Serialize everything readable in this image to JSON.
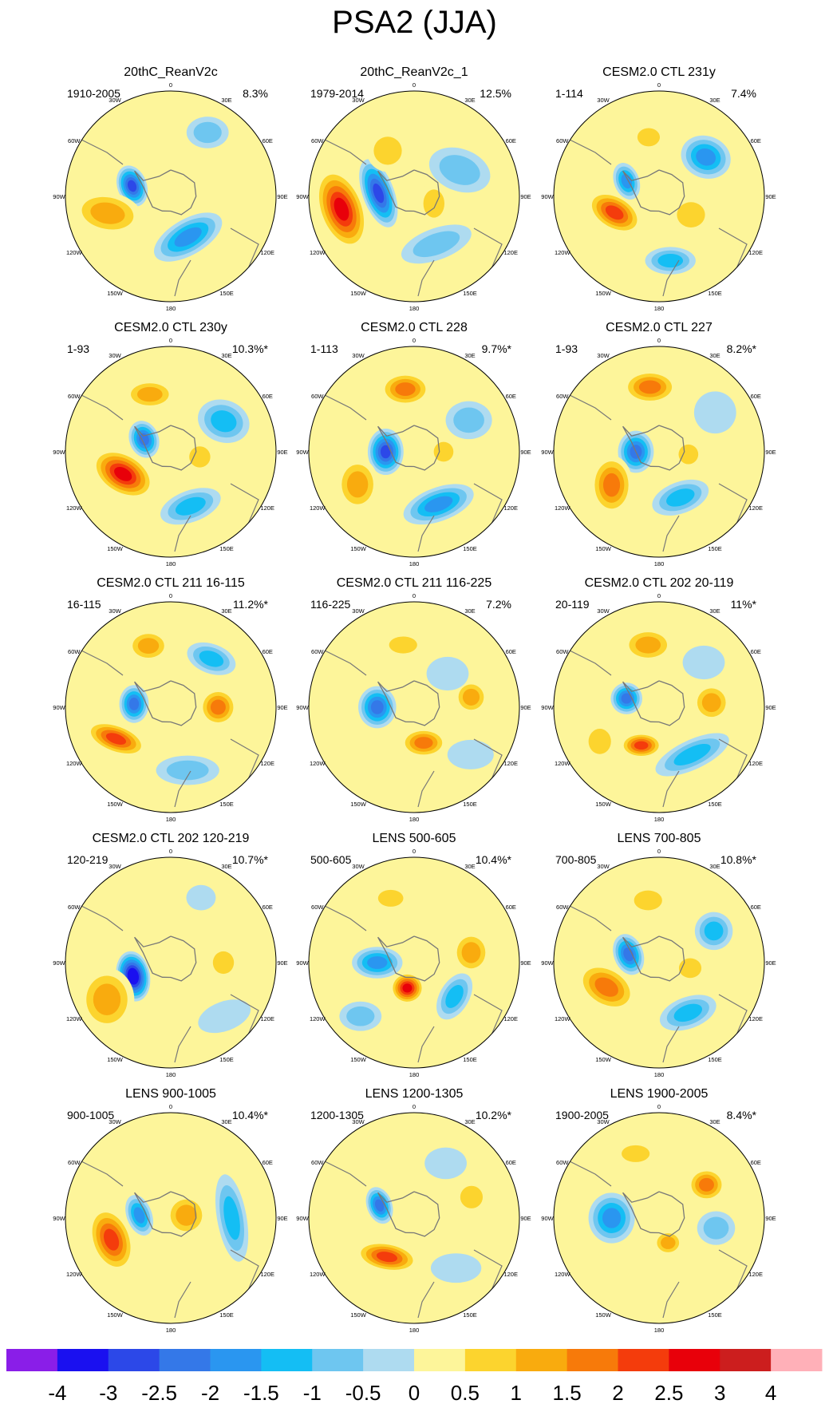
{
  "title": "PSA2 (JJA)",
  "colors": {
    "background": "#ffffff",
    "coast": "#777777",
    "circle_border": "#000000"
  },
  "chart_data": {
    "type": "polar-contour-map-grid",
    "projection": "south polar stereographic",
    "units": "normalized anomaly",
    "longitude_labels": [
      "0",
      "30E",
      "60E",
      "90E",
      "120E",
      "150E",
      "180",
      "150W",
      "120W",
      "90W",
      "60W",
      "30W"
    ],
    "colorbar": {
      "ticks": [
        "-4",
        "-3",
        "-2.5",
        "-2",
        "-1.5",
        "-1",
        "-0.5",
        "0",
        "0.5",
        "1",
        "1.5",
        "2",
        "2.5",
        "3",
        "4"
      ],
      "colors": [
        "#8a1ee8",
        "#1a10f0",
        "#2c48e8",
        "#3478e8",
        "#2a96f0",
        "#14bef4",
        "#6ec6f0",
        "#aedbf0",
        "#fdf59a",
        "#fcd42e",
        "#f9ab0e",
        "#f77a0a",
        "#f43c0c",
        "#e8000a",
        "#cc1e1e",
        "#ffb0b8"
      ]
    },
    "panels": [
      {
        "title": "20thC_ReanV2c",
        "period": "1910-2005",
        "variance": "8.3%",
        "anomalies": [
          {
            "lon_deg": -75,
            "dist": 0.38,
            "rx": 0.14,
            "ry": 0.2,
            "rot": -20,
            "value": -3
          },
          {
            "lon_deg": 157,
            "dist": 0.42,
            "rx": 0.36,
            "ry": 0.17,
            "rot": -30,
            "value": -2
          },
          {
            "lon_deg": -105,
            "dist": 0.62,
            "rx": 0.33,
            "ry": 0.2,
            "rot": 10,
            "value": 1.5
          },
          {
            "lon_deg": 30,
            "dist": 0.7,
            "rx": 0.2,
            "ry": 0.15,
            "rot": 0,
            "value": -1
          },
          {
            "lon_deg": -30,
            "dist": 0.78,
            "rx": 0.2,
            "ry": 0.1,
            "rot": 0,
            "value": 0.5
          }
        ]
      },
      {
        "title": "20thC_ReanV2c_1",
        "period": "1979-2014",
        "variance": "12.5%",
        "anomalies": [
          {
            "lon_deg": -100,
            "dist": 0.7,
            "rx": 0.22,
            "ry": 0.4,
            "rot": -20,
            "value": 3
          },
          {
            "lon_deg": -85,
            "dist": 0.34,
            "rx": 0.15,
            "ry": 0.34,
            "rot": -20,
            "value": -3
          },
          {
            "lon_deg": 60,
            "dist": 0.5,
            "rx": 0.3,
            "ry": 0.2,
            "rot": 20,
            "value": -1
          },
          {
            "lon_deg": 155,
            "dist": 0.5,
            "rx": 0.35,
            "ry": 0.15,
            "rot": -20,
            "value": -1
          },
          {
            "lon_deg": 110,
            "dist": 0.2,
            "rx": 0.15,
            "ry": 0.2,
            "rot": 0,
            "value": 1
          },
          {
            "lon_deg": -30,
            "dist": 0.5,
            "rx": 0.2,
            "ry": 0.2,
            "rot": 0,
            "value": 1
          }
        ]
      },
      {
        "title": "CESM2.0 CTL 231y",
        "period": "1-114",
        "variance": "7.4%",
        "anomalies": [
          {
            "lon_deg": -110,
            "dist": 0.45,
            "rx": 0.28,
            "ry": 0.17,
            "rot": 30,
            "value": 2.5
          },
          {
            "lon_deg": -65,
            "dist": 0.34,
            "rx": 0.12,
            "ry": 0.18,
            "rot": -20,
            "value": -2
          },
          {
            "lon_deg": 50,
            "dist": 0.58,
            "rx": 0.24,
            "ry": 0.2,
            "rot": 20,
            "value": -2
          },
          {
            "lon_deg": 170,
            "dist": 0.62,
            "rx": 0.24,
            "ry": 0.13,
            "rot": 0,
            "value": -1.5
          },
          {
            "lon_deg": -10,
            "dist": 0.57,
            "rx": 0.16,
            "ry": 0.13,
            "rot": 0,
            "value": 1
          },
          {
            "lon_deg": 120,
            "dist": 0.35,
            "rx": 0.2,
            "ry": 0.18,
            "rot": 0,
            "value": 1
          }
        ]
      },
      {
        "title": "CESM2.0 CTL 230y",
        "period": "1-93",
        "variance": "10.3%*",
        "anomalies": [
          {
            "lon_deg": -115,
            "dist": 0.5,
            "rx": 0.32,
            "ry": 0.2,
            "rot": 30,
            "value": 3
          },
          {
            "lon_deg": -65,
            "dist": 0.28,
            "rx": 0.14,
            "ry": 0.18,
            "rot": -20,
            "value": -2.5
          },
          {
            "lon_deg": 60,
            "dist": 0.58,
            "rx": 0.25,
            "ry": 0.2,
            "rot": 20,
            "value": -1.5
          },
          {
            "lon_deg": 160,
            "dist": 0.55,
            "rx": 0.3,
            "ry": 0.15,
            "rot": -20,
            "value": -1.5
          },
          {
            "lon_deg": -20,
            "dist": 0.58,
            "rx": 0.24,
            "ry": 0.14,
            "rot": 0,
            "value": 1.5
          },
          {
            "lon_deg": 100,
            "dist": 0.28,
            "rx": 0.15,
            "ry": 0.15,
            "rot": 0,
            "value": 1
          }
        ]
      },
      {
        "title": "CESM2.0 CTL 228",
        "period": "1-113",
        "variance": "9.7%*",
        "anomalies": [
          {
            "lon_deg": -90,
            "dist": 0.27,
            "rx": 0.17,
            "ry": 0.22,
            "rot": 0,
            "value": -3
          },
          {
            "lon_deg": -8,
            "dist": 0.6,
            "rx": 0.24,
            "ry": 0.16,
            "rot": 0,
            "value": 2
          },
          {
            "lon_deg": -120,
            "dist": 0.62,
            "rx": 0.2,
            "ry": 0.25,
            "rot": 0,
            "value": 1.5
          },
          {
            "lon_deg": 155,
            "dist": 0.55,
            "rx": 0.35,
            "ry": 0.16,
            "rot": -20,
            "value": -2
          },
          {
            "lon_deg": 60,
            "dist": 0.6,
            "rx": 0.22,
            "ry": 0.18,
            "rot": 0,
            "value": -1
          },
          {
            "lon_deg": 90,
            "dist": 0.28,
            "rx": 0.14,
            "ry": 0.14,
            "rot": 0,
            "value": 1
          }
        ]
      },
      {
        "title": "CESM2.0 CTL 227",
        "period": "1-93",
        "variance": "8.2%*",
        "anomalies": [
          {
            "lon_deg": -90,
            "dist": 0.22,
            "rx": 0.17,
            "ry": 0.2,
            "rot": 0,
            "value": -2.5
          },
          {
            "lon_deg": -8,
            "dist": 0.62,
            "rx": 0.26,
            "ry": 0.16,
            "rot": 0,
            "value": 2
          },
          {
            "lon_deg": -125,
            "dist": 0.55,
            "rx": 0.2,
            "ry": 0.28,
            "rot": 0,
            "value": 2
          },
          {
            "lon_deg": 155,
            "dist": 0.48,
            "rx": 0.28,
            "ry": 0.15,
            "rot": -20,
            "value": -1.5
          },
          {
            "lon_deg": 55,
            "dist": 0.65,
            "rx": 0.2,
            "ry": 0.2,
            "rot": 0,
            "value": -0.5
          },
          {
            "lon_deg": 95,
            "dist": 0.28,
            "rx": 0.14,
            "ry": 0.14,
            "rot": 0,
            "value": 1
          }
        ]
      },
      {
        "title": "CESM2.0 CTL 211 16-115",
        "period": "16-115",
        "variance": "11.2%*",
        "anomalies": [
          {
            "lon_deg": -85,
            "dist": 0.35,
            "rx": 0.14,
            "ry": 0.18,
            "rot": 0,
            "value": -2.5
          },
          {
            "lon_deg": -120,
            "dist": 0.6,
            "rx": 0.3,
            "ry": 0.14,
            "rot": 20,
            "value": 2.5
          },
          {
            "lon_deg": 90,
            "dist": 0.45,
            "rx": 0.18,
            "ry": 0.18,
            "rot": 0,
            "value": 2
          },
          {
            "lon_deg": 40,
            "dist": 0.6,
            "rx": 0.24,
            "ry": 0.14,
            "rot": 20,
            "value": -1.5
          },
          {
            "lon_deg": -20,
            "dist": 0.62,
            "rx": 0.2,
            "ry": 0.15,
            "rot": 0,
            "value": 1.5
          },
          {
            "lon_deg": 165,
            "dist": 0.62,
            "rx": 0.3,
            "ry": 0.14,
            "rot": 0,
            "value": -1
          }
        ]
      },
      {
        "title": "CESM2.0 CTL 211 116-225",
        "period": "116-225",
        "variance": "7.2%",
        "anomalies": [
          {
            "lon_deg": -90,
            "dist": 0.35,
            "rx": 0.18,
            "ry": 0.2,
            "rot": 0,
            "value": -2.5
          },
          {
            "lon_deg": 165,
            "dist": 0.35,
            "rx": 0.22,
            "ry": 0.14,
            "rot": 0,
            "value": 2
          },
          {
            "lon_deg": 80,
            "dist": 0.55,
            "rx": 0.16,
            "ry": 0.16,
            "rot": 0,
            "value": 1.5
          },
          {
            "lon_deg": -10,
            "dist": 0.6,
            "rx": 0.2,
            "ry": 0.12,
            "rot": 0,
            "value": 1
          },
          {
            "lon_deg": 45,
            "dist": 0.45,
            "rx": 0.2,
            "ry": 0.16,
            "rot": 0,
            "value": -0.5
          },
          {
            "lon_deg": 130,
            "dist": 0.7,
            "rx": 0.22,
            "ry": 0.14,
            "rot": 0,
            "value": -0.5
          }
        ]
      },
      {
        "title": "CESM2.0 CTL 202 20-119",
        "period": "20-119",
        "variance": "11%*",
        "anomalies": [
          {
            "lon_deg": -75,
            "dist": 0.32,
            "rx": 0.15,
            "ry": 0.15,
            "rot": 0,
            "value": -2.5
          },
          {
            "lon_deg": -155,
            "dist": 0.4,
            "rx": 0.2,
            "ry": 0.12,
            "rot": 0,
            "value": 2.5
          },
          {
            "lon_deg": 145,
            "dist": 0.55,
            "rx": 0.38,
            "ry": 0.14,
            "rot": -25,
            "value": -1.5
          },
          {
            "lon_deg": -10,
            "dist": 0.6,
            "rx": 0.24,
            "ry": 0.16,
            "rot": 0,
            "value": 1.5
          },
          {
            "lon_deg": 85,
            "dist": 0.5,
            "rx": 0.18,
            "ry": 0.18,
            "rot": 0,
            "value": 1.5
          },
          {
            "lon_deg": 45,
            "dist": 0.6,
            "rx": 0.2,
            "ry": 0.16,
            "rot": 0,
            "value": -0.5
          },
          {
            "lon_deg": -120,
            "dist": 0.65,
            "rx": 0.16,
            "ry": 0.18,
            "rot": 0,
            "value": 1
          }
        ]
      },
      {
        "title": "CESM2.0 CTL 202 120-219",
        "period": "120-219",
        "variance": "10.7%*",
        "anomalies": [
          {
            "lon_deg": -110,
            "dist": 0.38,
            "rx": 0.16,
            "ry": 0.24,
            "rot": -10,
            "value": -4
          },
          {
            "lon_deg": -120,
            "dist": 0.7,
            "rx": 0.26,
            "ry": 0.3,
            "rot": 0,
            "value": 1.5
          },
          {
            "lon_deg": 25,
            "dist": 0.68,
            "rx": 0.14,
            "ry": 0.12,
            "rot": 0,
            "value": -0.5
          },
          {
            "lon_deg": 90,
            "dist": 0.5,
            "rx": 0.15,
            "ry": 0.16,
            "rot": 0,
            "value": 1
          },
          {
            "lon_deg": 135,
            "dist": 0.72,
            "rx": 0.26,
            "ry": 0.14,
            "rot": -20,
            "value": -0.5
          },
          {
            "lon_deg": -30,
            "dist": 0.65,
            "rx": 0.16,
            "ry": 0.12,
            "rot": 0,
            "value": 0.5
          }
        ]
      },
      {
        "title": "LENS 500-605",
        "period": "500-605",
        "variance": "10.4%*",
        "anomalies": [
          {
            "lon_deg": -165,
            "dist": 0.25,
            "rx": 0.16,
            "ry": 0.15,
            "rot": 0,
            "value": 3
          },
          {
            "lon_deg": -90,
            "dist": 0.35,
            "rx": 0.24,
            "ry": 0.15,
            "rot": 0,
            "value": -2
          },
          {
            "lon_deg": 130,
            "dist": 0.5,
            "rx": 0.14,
            "ry": 0.24,
            "rot": 30,
            "value": -1.5
          },
          {
            "lon_deg": 80,
            "dist": 0.55,
            "rx": 0.18,
            "ry": 0.2,
            "rot": 0,
            "value": 1.5
          },
          {
            "lon_deg": -20,
            "dist": 0.65,
            "rx": 0.18,
            "ry": 0.12,
            "rot": 0,
            "value": 1
          },
          {
            "lon_deg": -135,
            "dist": 0.72,
            "rx": 0.2,
            "ry": 0.14,
            "rot": 0,
            "value": -1
          }
        ]
      },
      {
        "title": "LENS 700-805",
        "period": "700-805",
        "variance": "10.8%*",
        "anomalies": [
          {
            "lon_deg": -75,
            "dist": 0.3,
            "rx": 0.14,
            "ry": 0.2,
            "rot": -20,
            "value": -2.5
          },
          {
            "lon_deg": -115,
            "dist": 0.55,
            "rx": 0.3,
            "ry": 0.2,
            "rot": 30,
            "value": 2
          },
          {
            "lon_deg": 60,
            "dist": 0.6,
            "rx": 0.18,
            "ry": 0.18,
            "rot": 0,
            "value": -1.5
          },
          {
            "lon_deg": 150,
            "dist": 0.55,
            "rx": 0.28,
            "ry": 0.15,
            "rot": -20,
            "value": -1.5
          },
          {
            "lon_deg": -10,
            "dist": 0.6,
            "rx": 0.2,
            "ry": 0.14,
            "rot": 0,
            "value": 1
          },
          {
            "lon_deg": 100,
            "dist": 0.3,
            "rx": 0.16,
            "ry": 0.14,
            "rot": 0,
            "value": 1
          }
        ]
      },
      {
        "title": "LENS 900-1005",
        "period": "900-1005",
        "variance": "10.4%*",
        "anomalies": [
          {
            "lon_deg": -110,
            "dist": 0.6,
            "rx": 0.2,
            "ry": 0.32,
            "rot": -20,
            "value": 2.5
          },
          {
            "lon_deg": -85,
            "dist": 0.3,
            "rx": 0.12,
            "ry": 0.2,
            "rot": -20,
            "value": -2
          },
          {
            "lon_deg": 90,
            "dist": 0.58,
            "rx": 0.14,
            "ry": 0.42,
            "rot": -10,
            "value": -1.5
          },
          {
            "lon_deg": 80,
            "dist": 0.15,
            "rx": 0.2,
            "ry": 0.2,
            "rot": 0,
            "value": 1.5
          },
          {
            "lon_deg": -20,
            "dist": 0.6,
            "rx": 0.2,
            "ry": 0.15,
            "rot": 0,
            "value": 0.5
          }
        ]
      },
      {
        "title": "LENS 1200-1305",
        "period": "1200-1305",
        "variance": "10.2%*",
        "anomalies": [
          {
            "lon_deg": -70,
            "dist": 0.35,
            "rx": 0.12,
            "ry": 0.18,
            "rot": -20,
            "value": -2.5
          },
          {
            "lon_deg": -145,
            "dist": 0.45,
            "rx": 0.3,
            "ry": 0.14,
            "rot": 10,
            "value": 2.5
          },
          {
            "lon_deg": 70,
            "dist": 0.58,
            "rx": 0.16,
            "ry": 0.16,
            "rot": 0,
            "value": 1
          },
          {
            "lon_deg": 30,
            "dist": 0.6,
            "rx": 0.2,
            "ry": 0.15,
            "rot": 0,
            "value": -0.5
          },
          {
            "lon_deg": 140,
            "dist": 0.62,
            "rx": 0.24,
            "ry": 0.14,
            "rot": 0,
            "value": -0.5
          },
          {
            "lon_deg": -20,
            "dist": 0.62,
            "rx": 0.18,
            "ry": 0.12,
            "rot": 0,
            "value": 0.5
          }
        ]
      },
      {
        "title": "LENS 1900-2005",
        "period": "1900-2005",
        "variance": "8.4%*",
        "anomalies": [
          {
            "lon_deg": -90,
            "dist": 0.45,
            "rx": 0.22,
            "ry": 0.24,
            "rot": 0,
            "value": -2
          },
          {
            "lon_deg": 55,
            "dist": 0.55,
            "rx": 0.18,
            "ry": 0.16,
            "rot": 0,
            "value": 2
          },
          {
            "lon_deg": 160,
            "dist": 0.25,
            "rx": 0.14,
            "ry": 0.12,
            "rot": 0,
            "value": 1.5
          },
          {
            "lon_deg": 100,
            "dist": 0.55,
            "rx": 0.18,
            "ry": 0.16,
            "rot": 0,
            "value": -1
          },
          {
            "lon_deg": -20,
            "dist": 0.65,
            "rx": 0.2,
            "ry": 0.12,
            "rot": 0,
            "value": 1
          }
        ]
      }
    ]
  }
}
